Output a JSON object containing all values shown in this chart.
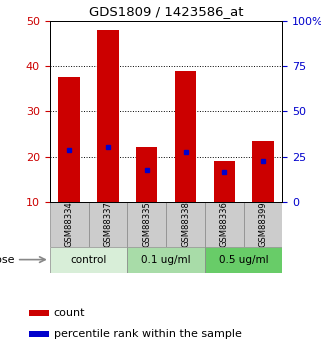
{
  "title": "GDS1809 / 1423586_at",
  "samples": [
    "GSM88334",
    "GSM88337",
    "GSM88335",
    "GSM88338",
    "GSM88336",
    "GSM88399"
  ],
  "count_values": [
    37.5,
    48.0,
    22.2,
    39.0,
    19.0,
    23.5
  ],
  "percentile_values": [
    21.5,
    22.0,
    17.0,
    21.0,
    16.5,
    19.0
  ],
  "bar_bottom": 10,
  "ylim_left": [
    10,
    50
  ],
  "ylim_right": [
    0,
    100
  ],
  "yticks_left": [
    10,
    20,
    30,
    40,
    50
  ],
  "yticks_right": [
    0,
    25,
    50,
    75,
    100
  ],
  "ytick_labels_right": [
    "0",
    "25",
    "50",
    "75",
    "100%"
  ],
  "bar_color": "#cc0000",
  "blue_color": "#0000cc",
  "bar_width": 0.55,
  "groups": [
    {
      "label": "control",
      "indices": [
        0,
        1
      ],
      "color": "#d8eed8"
    },
    {
      "label": "0.1 ug/ml",
      "indices": [
        2,
        3
      ],
      "color": "#a8dca8"
    },
    {
      "label": "0.5 ug/ml",
      "indices": [
        4,
        5
      ],
      "color": "#68cc68"
    }
  ],
  "tick_label_bg": "#cccccc",
  "dose_label": "dose",
  "legend_count": "count",
  "legend_percentile": "percentile rank within the sample",
  "grid_color": "black"
}
